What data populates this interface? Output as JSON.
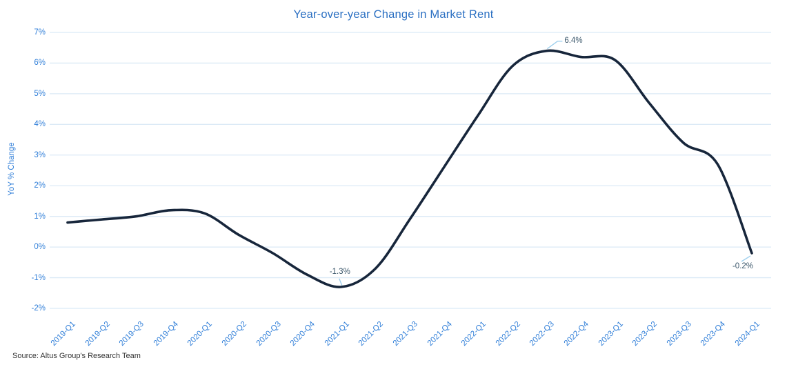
{
  "chart": {
    "colors": {
      "title": "#2a6fc2",
      "axis_label": "#2f7ed8",
      "grid": "#dbeaf6",
      "line": "#17263b",
      "annotation_text": "#3a566a",
      "annotation_leader": "#9fd0ee",
      "source_text": "#333333"
    }
  },
  "chart_data": {
    "type": "line",
    "title": "Year-over-year Change in Market Rent",
    "xlabel": "",
    "ylabel": "YoY % Change",
    "source": "Source: Altus Group's Research Team",
    "categories": [
      "2019-Q1",
      "2019-Q2",
      "2019-Q3",
      "2019-Q4",
      "2020-Q1",
      "2020-Q2",
      "2020-Q3",
      "2020-Q4",
      "2021-Q1",
      "2021-Q2",
      "2021-Q3",
      "2021-Q4",
      "2022-Q1",
      "2022-Q2",
      "2022-Q3",
      "2022-Q4",
      "2023-Q1",
      "2023-Q2",
      "2023-Q3",
      "2023-Q4",
      "2024-Q1"
    ],
    "values": [
      0.8,
      0.9,
      1.0,
      1.2,
      1.1,
      0.4,
      -0.2,
      -0.9,
      -1.3,
      -0.7,
      0.9,
      2.6,
      4.3,
      5.9,
      6.4,
      6.2,
      6.1,
      4.7,
      3.4,
      2.7,
      -0.2
    ],
    "ylim": [
      -2,
      7
    ],
    "yticks": [
      "7%",
      "6%",
      "5%",
      "4%",
      "3%",
      "2%",
      "1%",
      "0%",
      "-1%",
      "-2%"
    ],
    "grid": "horizontal",
    "legend": "none",
    "annotations": [
      {
        "text": "6.4%",
        "index": 14,
        "placement": "top-right"
      },
      {
        "text": "-1.3%",
        "index": 8,
        "placement": "above"
      },
      {
        "text": "-0.2%",
        "index": 20,
        "placement": "below-left"
      }
    ]
  }
}
